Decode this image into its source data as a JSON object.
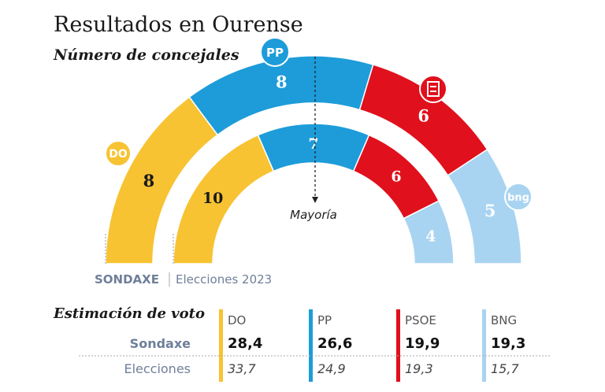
{
  "title": "Resultados en Ourense",
  "subtitle": "Número de concejales",
  "majority_label": "Mayoría",
  "sources": [
    "SONDAXE",
    "Elecciones 2023"
  ],
  "colors": {
    "DO": "#F7C332",
    "PP": "#1D9CD9",
    "PSOE": "#E0101C",
    "BNG": "#A8D4F1"
  },
  "logos": {
    "DO": "DO",
    "PP": "PP",
    "BNG": "bng"
  },
  "chart_data": [
    {
      "type": "semicircle-parliament",
      "title": "Número de concejales",
      "rings": [
        {
          "name": "SONDAXE",
          "seats": [
            {
              "party": "DO",
              "value": 8
            },
            {
              "party": "PP",
              "value": 8
            },
            {
              "party": "PSOE",
              "value": 6
            },
            {
              "party": "BNG",
              "value": 5
            }
          ]
        },
        {
          "name": "Elecciones 2023",
          "seats": [
            {
              "party": "DO",
              "value": 10
            },
            {
              "party": "PP",
              "value": 7
            },
            {
              "party": "PSOE",
              "value": 6
            },
            {
              "party": "BNG",
              "value": 4
            }
          ]
        }
      ],
      "majority": "Mayoría"
    },
    {
      "type": "table",
      "title": "Estimación de voto",
      "columns": [
        "DO",
        "PP",
        "PSOE",
        "BNG"
      ],
      "rows": [
        {
          "label": "Sondaxe",
          "values": [
            "28,4",
            "26,6",
            "19,9",
            "19,3"
          ]
        },
        {
          "label": "Elecciones",
          "values": [
            "33,7",
            "24,9",
            "19,3",
            "15,7"
          ]
        }
      ]
    }
  ]
}
